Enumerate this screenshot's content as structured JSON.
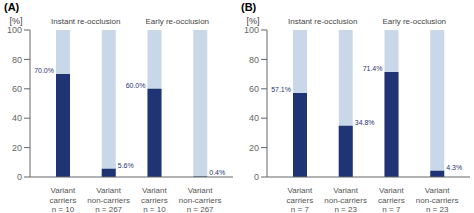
{
  "chart_data": [
    {
      "type": "bar",
      "title": "(A)",
      "ylabel": "[%]",
      "categories": [
        "Variant\ncarriers\nn = 10",
        "Variant\nnon-carriers\nn = 267",
        "Variant\ncarriers\nn = 10",
        "Variant\nnon-carriers\nn = 267"
      ],
      "series": [
        {
          "color": "#c8d8e8",
          "values": [
            100,
            100,
            100,
            100
          ]
        },
        {
          "color": "#1f3474",
          "values": [
            70.0,
            5.6,
            60.0,
            0.4
          ],
          "value_labels": [
            "70.0%",
            "5.6%",
            "60.0%",
            "0.4%"
          ]
        }
      ],
      "annotations": [
        "Instant re-occlusion",
        "Early re-occlusion"
      ],
      "ylim": [
        0,
        100
      ],
      "yticks": [
        0,
        20,
        40,
        60,
        80,
        100
      ],
      "data_labels": true,
      "grid": false
    },
    {
      "type": "bar",
      "title": "(B)",
      "ylabel": "[%]",
      "categories": [
        "Variant\ncarriers\nn = 7",
        "Variant\nnon-carriers\nn = 23",
        "Variant\ncarriers\nn = 7",
        "Variant\nnon-carriers\nn = 23"
      ],
      "series": [
        {
          "color": "#c8d8e8",
          "values": [
            100,
            100,
            100,
            100
          ]
        },
        {
          "color": "#1f3474",
          "values": [
            57.1,
            34.8,
            71.4,
            4.3
          ],
          "value_labels": [
            "57.1%",
            "34.8%",
            "71.4%",
            "4.3%"
          ]
        }
      ],
      "annotations": [
        "Instant re-occlusion",
        "Early re-occlusion"
      ],
      "ylim": [
        0,
        100
      ],
      "yticks": [
        0,
        20,
        40,
        60,
        80,
        100
      ],
      "data_labels": true,
      "grid": false
    }
  ]
}
